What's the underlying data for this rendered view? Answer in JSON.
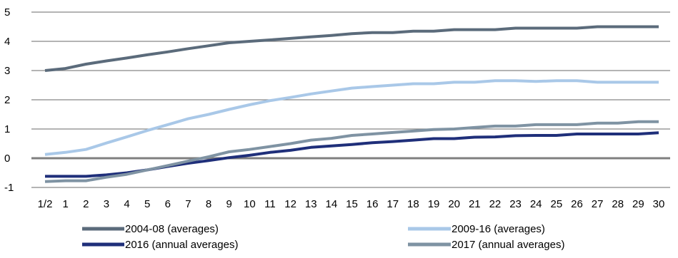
{
  "chart_data": {
    "type": "line",
    "title": "",
    "xlabel": "",
    "ylabel": "",
    "ylim": [
      -1,
      5
    ],
    "yticks": [
      "-1",
      "0",
      "1",
      "2",
      "3",
      "4",
      "5"
    ],
    "categories": [
      "1/2",
      "1",
      "2",
      "3",
      "4",
      "5",
      "6",
      "7",
      "8",
      "9",
      "10",
      "11",
      "12",
      "13",
      "14",
      "15",
      "16",
      "17",
      "18",
      "19",
      "20",
      "21",
      "22",
      "23",
      "24",
      "25",
      "26",
      "27",
      "28",
      "29",
      "30"
    ],
    "grid": "horizontal",
    "legend_position": "bottom",
    "series": [
      {
        "name": "2004-08 (averages)",
        "color": "#5b6b7b",
        "values": [
          3.0,
          3.07,
          3.22,
          3.33,
          3.43,
          3.54,
          3.64,
          3.75,
          3.85,
          3.95,
          4.0,
          4.05,
          4.1,
          4.15,
          4.2,
          4.26,
          4.3,
          4.3,
          4.35,
          4.35,
          4.4,
          4.4,
          4.4,
          4.45,
          4.45,
          4.45,
          4.45,
          4.5,
          4.5,
          4.5,
          4.5
        ]
      },
      {
        "name": "2009-16 (averages)",
        "color": "#a9c8e8",
        "values": [
          0.13,
          0.2,
          0.3,
          0.52,
          0.73,
          0.95,
          1.15,
          1.35,
          1.5,
          1.67,
          1.83,
          1.97,
          2.08,
          2.2,
          2.3,
          2.4,
          2.45,
          2.5,
          2.55,
          2.55,
          2.6,
          2.6,
          2.65,
          2.65,
          2.63,
          2.65,
          2.65,
          2.6,
          2.6,
          2.6,
          2.6
        ]
      },
      {
        "name": "2016 (annual averages)",
        "color": "#1f2f7a",
        "values": [
          -0.62,
          -0.62,
          -0.62,
          -0.57,
          -0.5,
          -0.4,
          -0.28,
          -0.17,
          -0.08,
          0.02,
          0.1,
          0.2,
          0.27,
          0.37,
          0.42,
          0.47,
          0.53,
          0.57,
          0.62,
          0.67,
          0.67,
          0.72,
          0.73,
          0.77,
          0.78,
          0.78,
          0.83,
          0.83,
          0.83,
          0.83,
          0.87
        ]
      },
      {
        "name": "2017 (annual averages)",
        "color": "#7f93a3",
        "values": [
          -0.8,
          -0.77,
          -0.77,
          -0.65,
          -0.55,
          -0.4,
          -0.25,
          -0.1,
          0.05,
          0.22,
          0.3,
          0.4,
          0.5,
          0.62,
          0.68,
          0.78,
          0.83,
          0.88,
          0.93,
          0.98,
          1.0,
          1.05,
          1.1,
          1.1,
          1.15,
          1.15,
          1.15,
          1.2,
          1.2,
          1.25,
          1.25
        ]
      }
    ]
  }
}
